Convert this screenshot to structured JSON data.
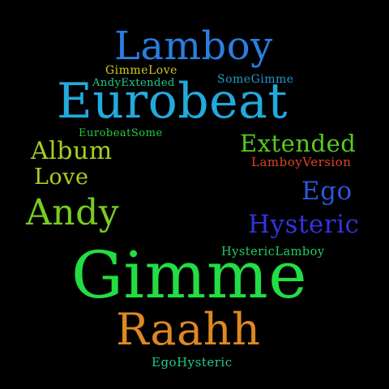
{
  "words": {
    "gimme": {
      "text": "Gimme",
      "color": "#22dd44"
    },
    "eurobeat": {
      "text": "Eurobeat",
      "color": "#22aadd"
    },
    "raahh": {
      "text": "Raahh",
      "color": "#dd8822"
    },
    "lamboy": {
      "text": "Lamboy",
      "color": "#2a7ee0"
    },
    "andy": {
      "text": "Andy",
      "color": "#77cc22"
    },
    "hysteric": {
      "text": "Hysteric",
      "color": "#3333dd"
    },
    "extended": {
      "text": "Extended",
      "color": "#55cc22"
    },
    "ego": {
      "text": "Ego",
      "color": "#2d55dd"
    },
    "album": {
      "text": "Album",
      "color": "#aacc22"
    },
    "love": {
      "text": "Love",
      "color": "#aacc22"
    },
    "lamboyversion": {
      "text": "LamboyVersion",
      "color": "#dd4422"
    },
    "hystericlamboy": {
      "text": "HystericLamboy",
      "color": "#22cc66"
    },
    "egohysteric": {
      "text": "EgoHysteric",
      "color": "#22cc88"
    },
    "eurobeatsome": {
      "text": "EurobeatSome",
      "color": "#22cc44"
    },
    "gimmelove": {
      "text": "GimmeLove",
      "color": "#cccc22"
    },
    "andyextended": {
      "text": "AndyExtended",
      "color": "#22cc88"
    },
    "somegimme": {
      "text": "SomeGimme",
      "color": "#2299cc"
    }
  },
  "background": "#000000"
}
